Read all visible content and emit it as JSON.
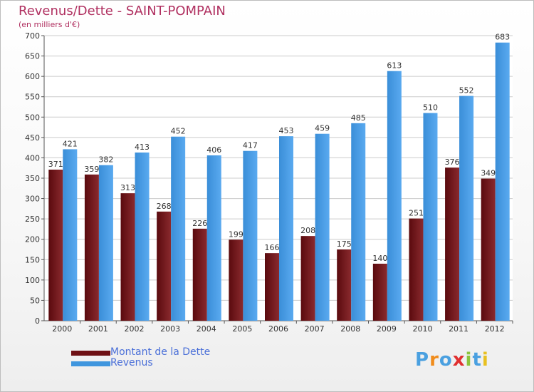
{
  "title": "Revenus/Dette - SAINT-POMPAIN",
  "subtitle": "(en milliers d'€)",
  "colors": {
    "debt": "#6e1014",
    "revenue": "#3f96de",
    "title": "#b03060",
    "legend_text": "#4a6fd8",
    "axis": "#555555",
    "grid": "#cccccc",
    "plot_bg": "#ffffff"
  },
  "brand": {
    "text": "Proxiti",
    "letters": [
      "P",
      "r",
      "o",
      "x",
      "i",
      "t",
      "i"
    ],
    "letter_colors": [
      "#4aa0e0",
      "#f08c1c",
      "#4aa0e0",
      "#e03030",
      "#8cc43c",
      "#4aa0e0",
      "#e8c020"
    ]
  },
  "chart_data": {
    "type": "bar",
    "title": "Revenus/Dette - SAINT-POMPAIN",
    "subtitle": "(en milliers d'€)",
    "xlabel": "",
    "ylabel": "",
    "categories": [
      "2000",
      "2001",
      "2002",
      "2003",
      "2004",
      "2005",
      "2006",
      "2007",
      "2008",
      "2009",
      "2010",
      "2011",
      "2012"
    ],
    "series": [
      {
        "name": "Montant de la Dette",
        "values": [
          371,
          359,
          313,
          268,
          226,
          199,
          166,
          208,
          175,
          140,
          251,
          376,
          349
        ]
      },
      {
        "name": "Revenus",
        "values": [
          421,
          382,
          413,
          452,
          406,
          417,
          453,
          459,
          485,
          613,
          510,
          552,
          683
        ]
      }
    ],
    "ylim": [
      0,
      700
    ],
    "yticks": [
      0,
      50,
      100,
      150,
      200,
      250,
      300,
      350,
      400,
      450,
      500,
      550,
      600,
      650,
      700
    ],
    "grid": "horizontal",
    "legend": "bottom-left"
  }
}
